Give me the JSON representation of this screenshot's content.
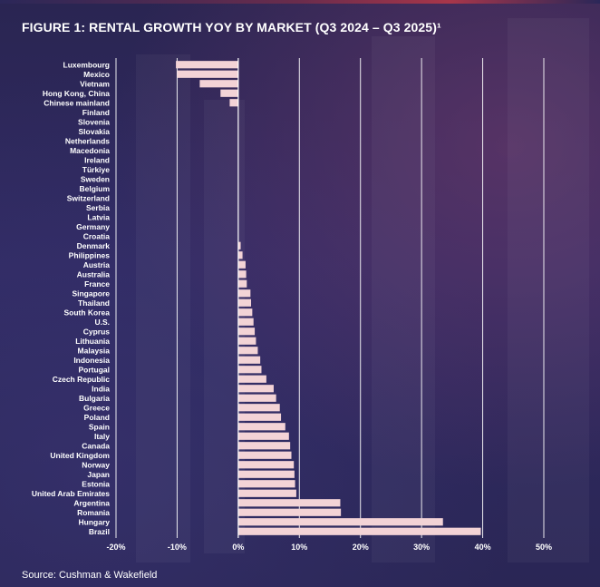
{
  "chart_data": {
    "type": "bar",
    "orientation": "horizontal",
    "title": "FIGURE 1: RENTAL GROWTH YOY BY MARKET (Q3 2024 – Q3 2025)¹",
    "source": "Source: Cushman & Wakefield",
    "categories": [
      "Luxembourg",
      "Mexico",
      "Vietnam",
      "Hong Kong, China",
      "Chinese mainland",
      "Finland",
      "Slovenia",
      "Slovakia",
      "Netherlands",
      "Macedonia",
      "Ireland",
      "Türkiye",
      "Sweden",
      "Belgium",
      "Switzerland",
      "Serbia",
      "Latvia",
      "Germany",
      "Croatia",
      "Denmark",
      "Philippines",
      "Austria",
      "Australia",
      "France",
      "Singapore",
      "Thailand",
      "South Korea",
      "U.S.",
      "Cyprus",
      "Lithuania",
      "Malaysia",
      "Indonesia",
      "Portugal",
      "Czech Republic",
      "India",
      "Bulgaria",
      "Greece",
      "Poland",
      "Spain",
      "Italy",
      "Canada",
      "United Kingdom",
      "Norway",
      "Japan",
      "Estonia",
      "United Arab Emirates",
      "Argentina",
      "Romania",
      "Hungary",
      "Brazil"
    ],
    "values": [
      -10.2,
      -10.0,
      -6.3,
      -2.9,
      -1.4,
      0,
      0,
      0,
      0,
      0,
      0,
      0,
      0,
      0,
      0,
      0,
      0,
      0,
      0,
      0.4,
      0.7,
      1.2,
      1.3,
      1.4,
      2.0,
      2.1,
      2.3,
      2.5,
      2.7,
      2.9,
      3.2,
      3.6,
      3.8,
      4.6,
      5.8,
      6.2,
      6.8,
      7.0,
      7.7,
      8.3,
      8.5,
      8.7,
      9.1,
      9.2,
      9.3,
      9.5,
      16.7,
      16.8,
      33.5,
      39.7
    ],
    "xlim": [
      -20,
      50
    ],
    "xticks": [
      -20,
      -10,
      0,
      10,
      20,
      30,
      40,
      50
    ],
    "xtick_labels": [
      "-20%",
      "-10%",
      "0%",
      "10%",
      "20%",
      "30%",
      "40%",
      "50%"
    ],
    "grid": "vertical",
    "bar_color": "#f3d3d6",
    "gridline_color": "#ffffff",
    "axis_color": "#ffffff"
  }
}
